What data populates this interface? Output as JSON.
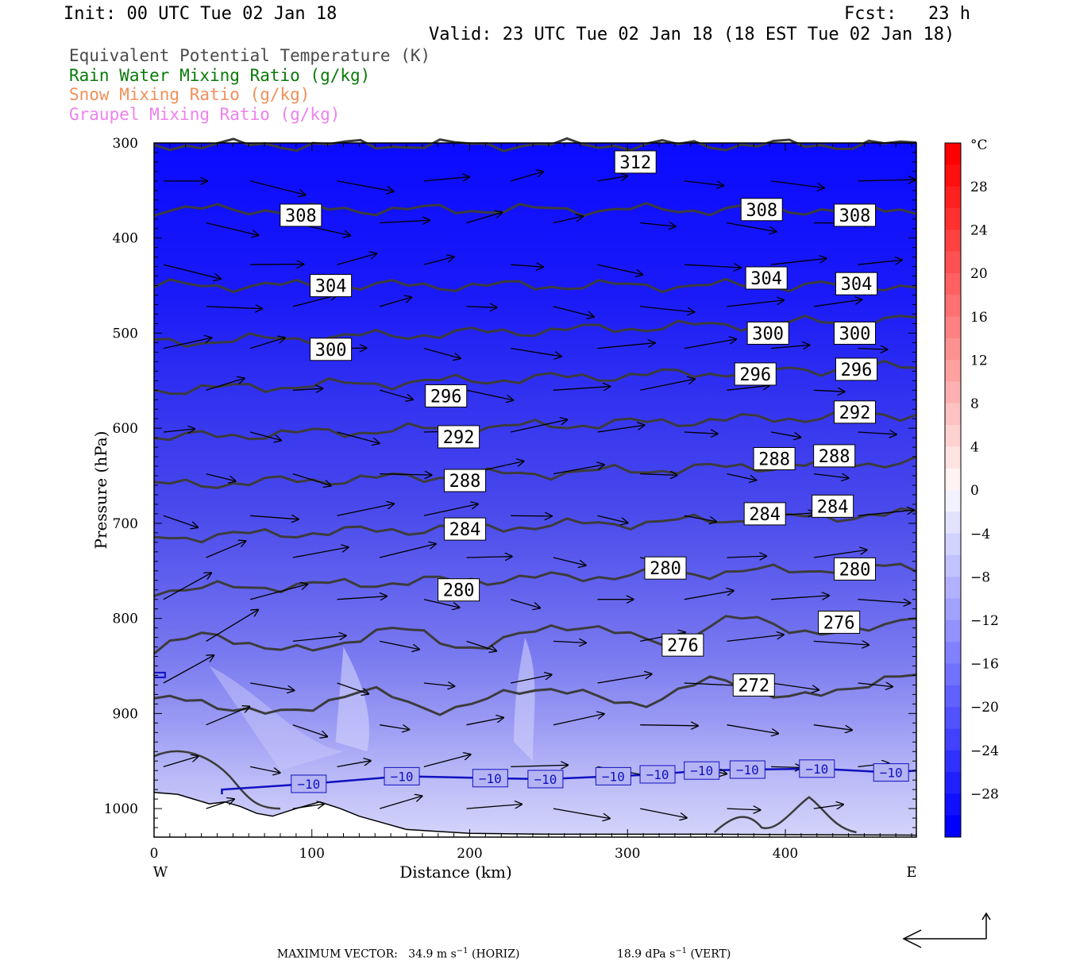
{
  "header": {
    "init": "Init: 00 UTC Tue 02 Jan 18",
    "fcst": "Fcst:   23 h",
    "valid": "Valid: 23 UTC Tue 02 Jan 18 (18 EST Tue 02 Jan 18)"
  },
  "variables": [
    {
      "text": "Equivalent Potential Temperature (K)",
      "color": "#4a4a4a"
    },
    {
      "text": "Rain Water Mixing Ratio (g/kg)",
      "color": "#0a7a0a"
    },
    {
      "text": "Snow Mixing Ratio (g/kg)",
      "color": "#f0905a"
    },
    {
      "text": "Graupel Mixing Ratio (g/kg)",
      "color": "#ee82ee"
    }
  ],
  "chart_data": {
    "type": "cross-section",
    "xlabel": "Distance (km)",
    "ylabel": "Pressure (hPa)",
    "xlim": [
      0,
      483
    ],
    "ylim": [
      1030,
      300
    ],
    "x_ticks": [
      0,
      100,
      200,
      300,
      400
    ],
    "y_ticks": [
      300,
      400,
      500,
      600,
      700,
      800,
      900,
      1000
    ],
    "x_end_labels": {
      "left": "W",
      "right": "E"
    },
    "colorbar": {
      "unit": "°C",
      "levels": [
        28,
        24,
        20,
        16,
        12,
        8,
        4,
        0,
        -4,
        -8,
        -12,
        -16,
        -20,
        -24,
        -28
      ],
      "warm_color": "#ff0000",
      "cold_color": "#0000ff"
    },
    "theta_e_contours": [
      {
        "value": 312,
        "pressure": 302,
        "labels": [
          [
            305,
            320
          ]
        ]
      },
      {
        "value": 308,
        "pressure": 370,
        "labels": [
          [
            93,
            376
          ],
          [
            385,
            370
          ],
          [
            444,
            376
          ]
        ]
      },
      {
        "value": 304,
        "pressure": 450,
        "labels": [
          [
            112,
            450
          ],
          [
            388,
            442
          ],
          [
            445,
            448
          ]
        ]
      },
      {
        "value": 300,
        "pressure": 510,
        "labels": [
          [
            112,
            517
          ],
          [
            389,
            500
          ],
          [
            444,
            500
          ]
        ]
      },
      {
        "value": 296,
        "pressure": 560,
        "labels": [
          [
            185,
            566
          ],
          [
            381,
            543
          ],
          [
            445,
            538
          ]
        ]
      },
      {
        "value": 292,
        "pressure": 610,
        "labels": [
          [
            193,
            609
          ],
          [
            444,
            583
          ]
        ]
      },
      {
        "value": 288,
        "pressure": 660,
        "labels": [
          [
            197,
            655
          ],
          [
            393,
            632
          ],
          [
            431,
            629
          ]
        ]
      },
      {
        "value": 284,
        "pressure": 715,
        "labels": [
          [
            197,
            706
          ],
          [
            387,
            690
          ],
          [
            430,
            682
          ]
        ]
      },
      {
        "value": 280,
        "pressure": 770,
        "labels": [
          [
            193,
            770
          ],
          [
            324,
            747
          ],
          [
            444,
            748
          ]
        ]
      },
      {
        "value": 276,
        "pressure": 830,
        "labels": [
          [
            335,
            828
          ],
          [
            434,
            804
          ]
        ]
      },
      {
        "value": 272,
        "pressure": 895,
        "labels": [
          [
            380,
            870
          ]
        ]
      }
    ],
    "temperature_contour": {
      "value": -10,
      "label": "−10",
      "color": "#1010c0",
      "labels": [
        [
          98,
          974
        ],
        [
          157,
          966
        ],
        [
          213,
          968
        ],
        [
          248,
          969
        ],
        [
          291,
          966
        ],
        [
          319,
          964
        ],
        [
          347,
          960
        ],
        [
          376,
          959
        ],
        [
          420,
          958
        ],
        [
          467,
          962
        ]
      ]
    },
    "max_vector": {
      "prefix": "MAXIMUM VECTOR:",
      "horiz": "34.9 m s",
      "horiz_exp": "−1",
      "horiz_suffix": " (HORIZ)",
      "vert": "18.9 dPa s",
      "vert_exp": "−1",
      "vert_suffix": " (VERT)"
    }
  }
}
